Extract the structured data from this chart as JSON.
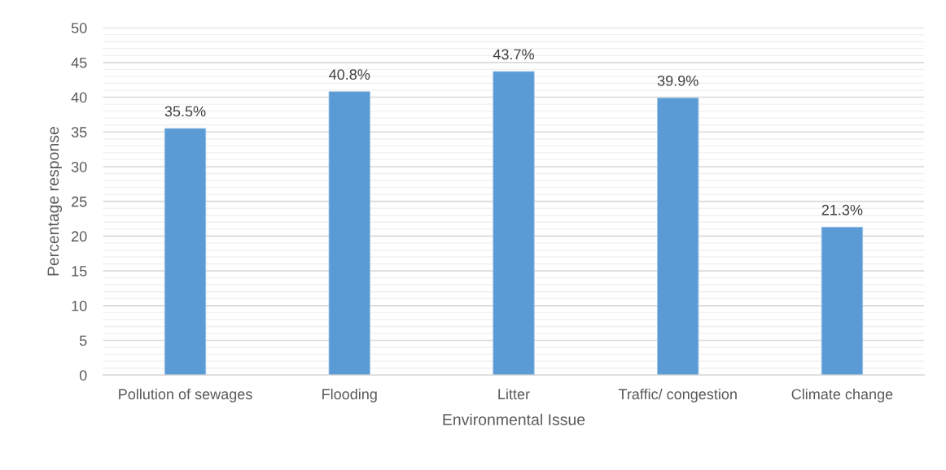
{
  "chart_data": {
    "type": "bar",
    "xlabel": "Environmental Issue",
    "ylabel": "Percentage response",
    "categories": [
      "Pollution of sewages",
      "Flooding",
      "Litter",
      "Traffic/ congestion",
      "Climate change"
    ],
    "values": [
      35.5,
      40.8,
      43.7,
      39.9,
      21.3
    ],
    "value_labels": [
      "35.5%",
      "40.8%",
      "43.7%",
      "39.9%",
      "21.3%"
    ],
    "color": "#5b9bd5",
    "ylim": [
      0,
      50
    ],
    "yticks": [
      0,
      {
        "value": 1,
        "label": null
      },
      {
        "value": 2,
        "label": null
      },
      {
        "value": 3,
        "label": null
      },
      {
        "value": 4,
        "label": null
      },
      5,
      {
        "value": 6,
        "label": null
      },
      {
        "value": 7,
        "label": null
      },
      {
        "value": 8,
        "label": null
      },
      {
        "value": 9,
        "label": null
      },
      10,
      {
        "value": 11,
        "label": null
      },
      {
        "value": 12,
        "label": null
      },
      {
        "value": 13,
        "label": null
      },
      {
        "value": 14,
        "label": null
      },
      15,
      {
        "value": 16,
        "label": null
      },
      {
        "value": 17,
        "label": null
      },
      {
        "value": 18,
        "label": null
      },
      {
        "value": 19,
        "label": null
      },
      20,
      {
        "value": 21,
        "label": null
      },
      {
        "value": 22,
        "label": null
      },
      {
        "value": 23,
        "label": null
      },
      {
        "value": 24,
        "label": null
      },
      25,
      {
        "value": 26,
        "label": null
      },
      {
        "value": 27,
        "label": null
      },
      {
        "value": 28,
        "label": null
      },
      {
        "value": 29,
        "label": null
      },
      30,
      {
        "value": 31,
        "label": null
      },
      {
        "value": 32,
        "label": null
      },
      {
        "value": 33,
        "label": null
      },
      {
        "value": 34,
        "label": null
      },
      35,
      {
        "value": 36,
        "label": null
      },
      {
        "value": 37,
        "label": null
      },
      {
        "value": 38,
        "label": null
      },
      {
        "value": 39,
        "label": null
      },
      40,
      {
        "value": 41,
        "label": null
      },
      {
        "value": 42,
        "label": null
      },
      {
        "value": 43,
        "label": null
      },
      {
        "value": 44,
        "label": null
      },
      45,
      {
        "value": 46,
        "label": null
      },
      {
        "value": 47,
        "label": null
      },
      {
        "value": 48,
        "label": null
      },
      {
        "value": 49,
        "label": null
      },
      50
    ],
    "grid": "y",
    "legend": false
  }
}
